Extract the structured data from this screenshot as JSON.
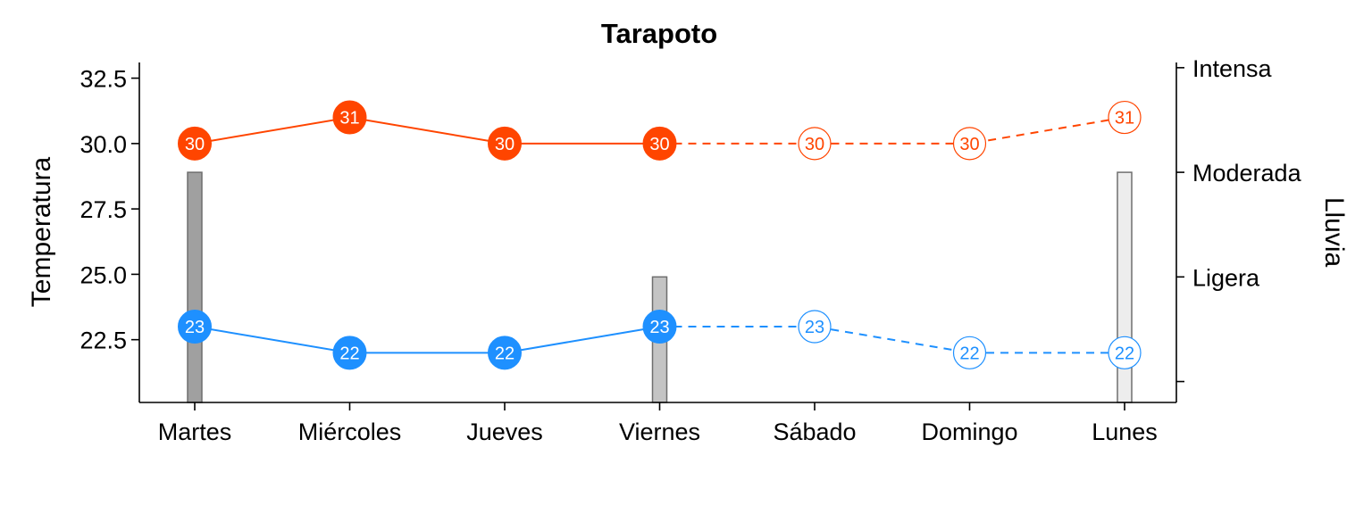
{
  "chart_data": {
    "type": "line",
    "title": "Tarapoto",
    "categories": [
      "Martes",
      "Miércoles",
      "Jueves",
      "Viernes",
      "Sábado",
      "Domingo",
      "Lunes"
    ],
    "ylabel": "Temperatura",
    "ylim": [
      20.1,
      33.1
    ],
    "yticks": [
      22.5,
      25.0,
      27.5,
      30.0,
      32.5
    ],
    "ytick_labels": [
      "22.5",
      "25.0",
      "27.5",
      "30.0",
      "32.5"
    ],
    "y2label": "Lluvia",
    "y2_tick_labels": [
      "",
      "Ligera",
      "Moderada",
      "Intensa"
    ],
    "y2lim": [
      -0.2,
      3.05
    ],
    "observed_count": 4,
    "series": [
      {
        "role": "max",
        "values": [
          30,
          31,
          30,
          30,
          30,
          30,
          31
        ],
        "labels": [
          "30",
          "31",
          "30",
          "30",
          "30",
          "30",
          "31"
        ],
        "color": "#FF4500"
      },
      {
        "role": "min",
        "values": [
          23,
          22,
          22,
          23,
          23,
          22,
          22
        ],
        "labels": [
          "23",
          "22",
          "22",
          "23",
          "23",
          "22",
          "22"
        ],
        "color": "#1E90FF"
      }
    ],
    "rain": {
      "values": [
        2.0,
        0,
        0,
        1.0,
        0,
        0,
        2.0
      ],
      "colors": [
        "#A0A0A0",
        null,
        null,
        "#C4C4C4",
        null,
        null,
        "#EDEDED"
      ]
    },
    "grid": false,
    "legend": "none"
  }
}
